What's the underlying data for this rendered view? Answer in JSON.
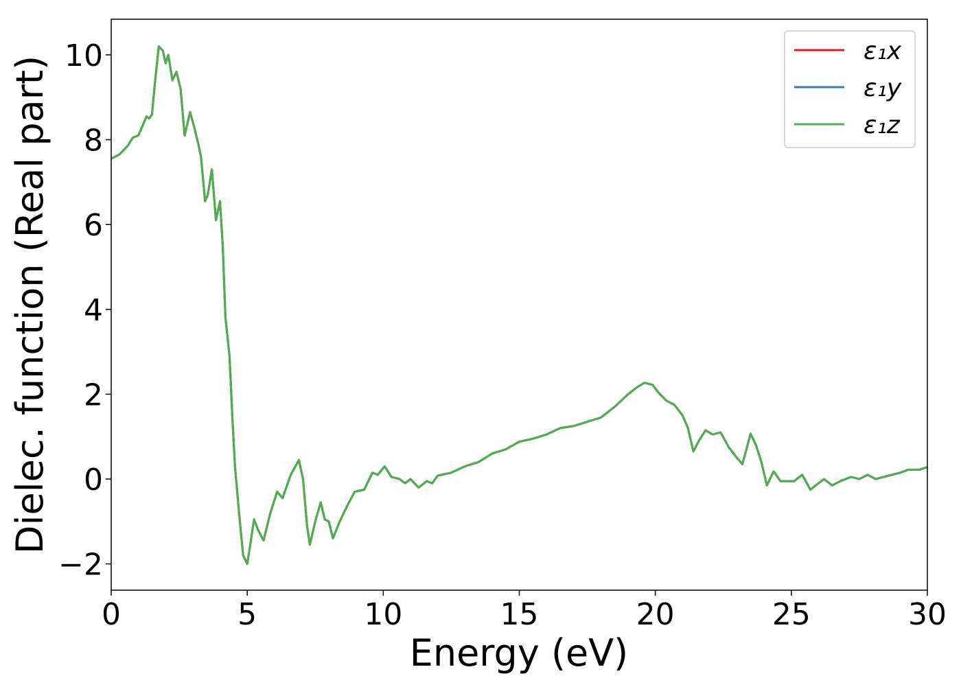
{
  "chart_data": {
    "type": "line",
    "xlabel": "Energy (eV)",
    "ylabel": "Dielec. function (Real part)",
    "x": [
      0,
      0.3,
      0.6,
      0.8,
      1.0,
      1.1,
      1.3,
      1.4,
      1.5,
      1.6,
      1.75,
      1.9,
      2.0,
      2.1,
      2.25,
      2.4,
      2.55,
      2.7,
      2.9,
      3.05,
      3.2,
      3.3,
      3.45,
      3.55,
      3.7,
      3.85,
      4.0,
      4.1,
      4.2,
      4.35,
      4.45,
      4.55,
      4.7,
      4.85,
      5.0,
      5.1,
      5.25,
      5.4,
      5.6,
      5.85,
      6.1,
      6.3,
      6.6,
      6.9,
      7.05,
      7.2,
      7.3,
      7.5,
      7.7,
      7.85,
      8.0,
      8.15,
      8.4,
      8.7,
      8.95,
      9.3,
      9.6,
      9.8,
      10.05,
      10.3,
      10.6,
      10.8,
      11.0,
      11.3,
      11.6,
      11.8,
      12.0,
      12.5,
      13.0,
      13.5,
      14.0,
      14.5,
      15.0,
      15.5,
      16.0,
      16.5,
      17.0,
      17.5,
      18.0,
      18.5,
      19.0,
      19.3,
      19.6,
      19.9,
      20.1,
      20.4,
      20.7,
      21.0,
      21.2,
      21.4,
      21.6,
      21.85,
      22.1,
      22.4,
      22.7,
      23.0,
      23.2,
      23.35,
      23.5,
      23.7,
      23.9,
      24.1,
      24.35,
      24.6,
      24.9,
      25.1,
      25.4,
      25.7,
      26.2,
      26.5,
      26.8,
      27.2,
      27.5,
      27.8,
      28.1,
      28.4,
      28.7,
      29.0,
      29.3,
      29.7,
      30.0
    ],
    "series": [
      {
        "name": "ε₁x",
        "color": "#e41a1c",
        "values": [
          7.55,
          7.65,
          7.85,
          8.05,
          8.1,
          8.25,
          8.55,
          8.5,
          8.6,
          9.3,
          10.2,
          10.1,
          9.8,
          10.0,
          9.4,
          9.6,
          9.2,
          8.1,
          8.65,
          8.3,
          7.9,
          7.6,
          6.55,
          6.7,
          7.3,
          6.1,
          6.55,
          5.5,
          3.8,
          2.9,
          1.5,
          0.3,
          -0.8,
          -1.8,
          -2.0,
          -1.6,
          -0.95,
          -1.2,
          -1.45,
          -0.8,
          -0.3,
          -0.45,
          0.1,
          0.45,
          0.0,
          -1.1,
          -1.55,
          -1.0,
          -0.55,
          -0.95,
          -1.0,
          -1.4,
          -1.0,
          -0.6,
          -0.3,
          -0.25,
          0.15,
          0.1,
          0.3,
          0.05,
          0.0,
          -0.1,
          0.0,
          -0.2,
          -0.05,
          -0.1,
          0.08,
          0.15,
          0.3,
          0.4,
          0.6,
          0.7,
          0.88,
          0.95,
          1.05,
          1.2,
          1.25,
          1.35,
          1.45,
          1.7,
          2.0,
          2.15,
          2.27,
          2.22,
          2.05,
          1.85,
          1.75,
          1.5,
          1.2,
          0.65,
          0.9,
          1.15,
          1.05,
          1.1,
          0.75,
          0.5,
          0.35,
          0.7,
          1.07,
          0.8,
          0.4,
          -0.15,
          0.18,
          -0.05,
          -0.05,
          -0.05,
          0.1,
          -0.25,
          0.0,
          -0.15,
          -0.05,
          0.05,
          0.0,
          0.1,
          0.0,
          0.05,
          0.1,
          0.15,
          0.22,
          0.22,
          0.28
        ]
      },
      {
        "name": "ε₁y",
        "color": "#377eb8",
        "values": [
          7.55,
          7.65,
          7.85,
          8.05,
          8.1,
          8.25,
          8.55,
          8.5,
          8.6,
          9.3,
          10.2,
          10.1,
          9.8,
          10.0,
          9.4,
          9.6,
          9.2,
          8.1,
          8.65,
          8.3,
          7.9,
          7.6,
          6.55,
          6.7,
          7.3,
          6.1,
          6.55,
          5.5,
          3.8,
          2.9,
          1.5,
          0.3,
          -0.8,
          -1.8,
          -2.0,
          -1.6,
          -0.95,
          -1.2,
          -1.45,
          -0.8,
          -0.3,
          -0.45,
          0.1,
          0.45,
          0.0,
          -1.1,
          -1.55,
          -1.0,
          -0.55,
          -0.95,
          -1.0,
          -1.4,
          -1.0,
          -0.6,
          -0.3,
          -0.25,
          0.15,
          0.1,
          0.3,
          0.05,
          0.0,
          -0.1,
          0.0,
          -0.2,
          -0.05,
          -0.1,
          0.08,
          0.15,
          0.3,
          0.4,
          0.6,
          0.7,
          0.88,
          0.95,
          1.05,
          1.2,
          1.25,
          1.35,
          1.45,
          1.7,
          2.0,
          2.15,
          2.27,
          2.22,
          2.05,
          1.85,
          1.75,
          1.5,
          1.2,
          0.65,
          0.9,
          1.15,
          1.05,
          1.1,
          0.75,
          0.5,
          0.35,
          0.7,
          1.07,
          0.8,
          0.4,
          -0.15,
          0.18,
          -0.05,
          -0.05,
          -0.05,
          0.1,
          -0.25,
          0.0,
          -0.15,
          -0.05,
          0.05,
          0.0,
          0.1,
          0.0,
          0.05,
          0.1,
          0.15,
          0.22,
          0.22,
          0.28
        ]
      },
      {
        "name": "ε₁z",
        "color": "#4daf4a",
        "values": [
          7.55,
          7.65,
          7.85,
          8.05,
          8.1,
          8.25,
          8.55,
          8.5,
          8.6,
          9.3,
          10.2,
          10.1,
          9.8,
          10.0,
          9.4,
          9.6,
          9.2,
          8.1,
          8.65,
          8.3,
          7.9,
          7.6,
          6.55,
          6.7,
          7.3,
          6.1,
          6.55,
          5.5,
          3.8,
          2.9,
          1.5,
          0.3,
          -0.8,
          -1.8,
          -2.0,
          -1.6,
          -0.95,
          -1.2,
          -1.45,
          -0.8,
          -0.3,
          -0.45,
          0.1,
          0.45,
          0.0,
          -1.1,
          -1.55,
          -1.0,
          -0.55,
          -0.95,
          -1.0,
          -1.4,
          -1.0,
          -0.6,
          -0.3,
          -0.25,
          0.15,
          0.1,
          0.3,
          0.05,
          0.0,
          -0.1,
          0.0,
          -0.2,
          -0.05,
          -0.1,
          0.08,
          0.15,
          0.3,
          0.4,
          0.6,
          0.7,
          0.88,
          0.95,
          1.05,
          1.2,
          1.25,
          1.35,
          1.45,
          1.7,
          2.0,
          2.15,
          2.27,
          2.22,
          2.05,
          1.85,
          1.75,
          1.5,
          1.2,
          0.65,
          0.9,
          1.15,
          1.05,
          1.1,
          0.75,
          0.5,
          0.35,
          0.7,
          1.07,
          0.8,
          0.4,
          -0.15,
          0.18,
          -0.05,
          -0.05,
          -0.05,
          0.1,
          -0.25,
          0.0,
          -0.15,
          -0.05,
          0.05,
          0.0,
          0.1,
          0.0,
          0.05,
          0.1,
          0.15,
          0.22,
          0.22,
          0.28
        ]
      }
    ],
    "xlim": [
      0,
      30
    ],
    "xticks": [
      0,
      5,
      10,
      15,
      20,
      25,
      30
    ],
    "ylim": [
      -2.62,
      10.84
    ],
    "yticks": [
      {
        "value": -2,
        "label": "−2"
      },
      0,
      2,
      4,
      6,
      8,
      10
    ],
    "grid": false,
    "legend": "upper right"
  }
}
